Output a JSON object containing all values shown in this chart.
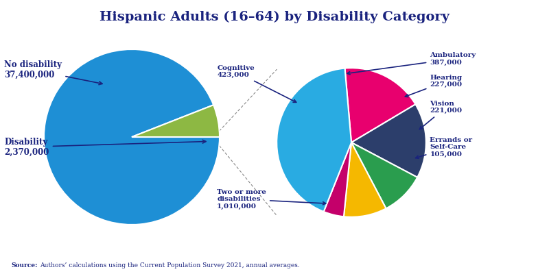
{
  "title": "Hispanic Adults (16–64) by Disability Category",
  "title_color": "#1a237e",
  "background_color": "#ffffff",
  "left_pie": {
    "values": [
      37400000,
      2370000
    ],
    "colors": [
      "#1e8fd5",
      "#8db843"
    ],
    "startangle": 0,
    "counterclock": false
  },
  "right_pie": {
    "values": [
      423000,
      387000,
      227000,
      221000,
      105000,
      1010000
    ],
    "colors": [
      "#e8006e",
      "#2c3e6b",
      "#2a9d4e",
      "#f5b800",
      "#c4006a",
      "#29abe2"
    ],
    "startangle": 95,
    "counterclock": false
  },
  "source_text": "Authors’ calculations using the Current Population Survey 2021, annual averages.",
  "source_bold": "Source:",
  "annotation_color": "#1a237e",
  "label_color": "#1a237e"
}
